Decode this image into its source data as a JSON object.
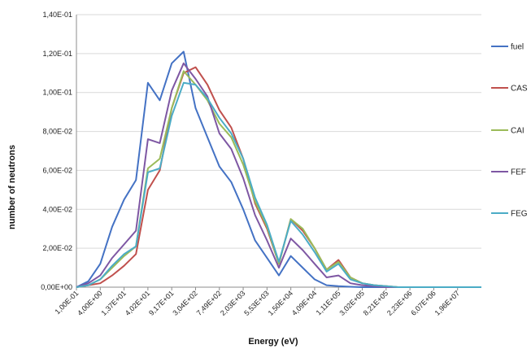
{
  "chart_data": {
    "type": "line",
    "title": "",
    "xlabel": "Energy (eV)",
    "ylabel": "number of neutrons",
    "ylim": [
      0,
      0.14
    ],
    "yticks": [
      "0,00E+00",
      "2,00E-02",
      "4,00E-02",
      "6,00E-02",
      "8,00E-02",
      "1,00E-01",
      "1,20E-01",
      "1,40E-01"
    ],
    "x_tick_labels": [
      "1,00E-01",
      "4,00E+00",
      "1,37E+01",
      "4,02E+01",
      "9,17E+01",
      "3,04E+02",
      "7,49E+02",
      "2,03E+03",
      "5,53E+03",
      "1,50E+04",
      "4,09E+04",
      "1,11E+05",
      "3,02E+05",
      "8,21E+05",
      "2,23E+06",
      "6,07E+06",
      "1,96E+07"
    ],
    "num_points": 35,
    "grid": true,
    "legend_position": "right",
    "series": [
      {
        "name": "fuel",
        "color": "#4472C4",
        "values": [
          0,
          0.003,
          0.012,
          0.031,
          0.045,
          0.055,
          0.105,
          0.096,
          0.115,
          0.121,
          0.092,
          0.077,
          0.062,
          0.054,
          0.04,
          0.024,
          0.015,
          0.006,
          0.016,
          0.01,
          0.004,
          0.001,
          0.0005,
          0.0002,
          0,
          0,
          0,
          0,
          0,
          0,
          0,
          0,
          0,
          0,
          0
        ]
      },
      {
        "name": "CAS",
        "color": "#C0504D",
        "values": [
          0,
          0.001,
          0.002,
          0.006,
          0.011,
          0.017,
          0.05,
          0.06,
          0.092,
          0.11,
          0.113,
          0.104,
          0.091,
          0.082,
          0.066,
          0.043,
          0.03,
          0.012,
          0.035,
          0.029,
          0.02,
          0.009,
          0.014,
          0.005,
          0.002,
          0.001,
          0.0005,
          0,
          0,
          0,
          0,
          0,
          0,
          0,
          0
        ]
      },
      {
        "name": "CAI",
        "color": "#9BBB59",
        "values": [
          0,
          0.001,
          0.004,
          0.01,
          0.016,
          0.021,
          0.061,
          0.066,
          0.092,
          0.111,
          0.104,
          0.096,
          0.084,
          0.077,
          0.063,
          0.044,
          0.031,
          0.012,
          0.035,
          0.03,
          0.02,
          0.009,
          0.013,
          0.005,
          0.002,
          0.001,
          0.0005,
          0,
          0,
          0,
          0,
          0,
          0,
          0,
          0
        ]
      },
      {
        "name": "FEF",
        "color": "#7E57A3",
        "values": [
          0,
          0.002,
          0.006,
          0.015,
          0.022,
          0.029,
          0.076,
          0.074,
          0.101,
          0.115,
          0.107,
          0.098,
          0.079,
          0.071,
          0.056,
          0.037,
          0.024,
          0.01,
          0.025,
          0.019,
          0.012,
          0.005,
          0.006,
          0.002,
          0.001,
          0.0005,
          0,
          0,
          0,
          0,
          0,
          0,
          0,
          0,
          0
        ]
      },
      {
        "name": "FEG",
        "color": "#4BACC6",
        "values": [
          0,
          0.001,
          0.004,
          0.011,
          0.017,
          0.021,
          0.059,
          0.061,
          0.088,
          0.105,
          0.104,
          0.097,
          0.087,
          0.079,
          0.066,
          0.046,
          0.032,
          0.013,
          0.034,
          0.027,
          0.018,
          0.008,
          0.012,
          0.004,
          0.002,
          0.001,
          0.0005,
          0,
          0,
          0,
          0,
          0,
          0,
          0,
          0
        ]
      }
    ]
  }
}
